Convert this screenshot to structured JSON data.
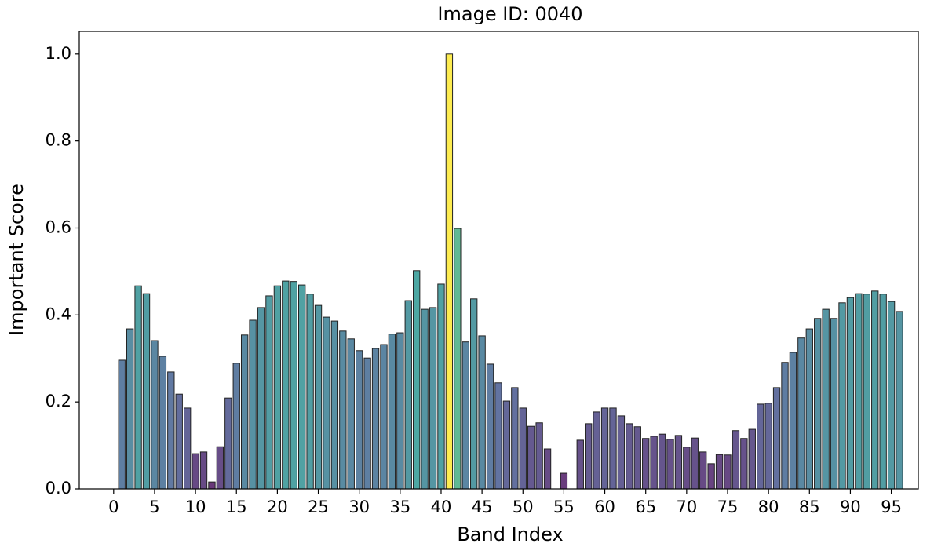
{
  "chart_data": {
    "type": "bar",
    "title": "Image ID: 0040",
    "xlabel": "Band Index",
    "ylabel": "Important Score",
    "x": [
      1,
      2,
      3,
      4,
      5,
      6,
      7,
      8,
      9,
      10,
      11,
      12,
      13,
      14,
      15,
      16,
      17,
      18,
      19,
      20,
      21,
      22,
      23,
      24,
      25,
      26,
      27,
      28,
      29,
      30,
      31,
      32,
      33,
      34,
      35,
      36,
      37,
      38,
      39,
      40,
      41,
      42,
      43,
      44,
      45,
      46,
      47,
      48,
      49,
      50,
      51,
      52,
      53,
      54,
      55,
      56,
      57,
      58,
      59,
      60,
      61,
      62,
      63,
      64,
      65,
      66,
      67,
      68,
      69,
      70,
      71,
      72,
      73,
      74,
      75,
      76,
      77,
      78,
      79,
      80,
      81,
      82,
      83,
      84,
      85,
      86,
      87,
      88,
      89,
      90,
      91,
      92,
      93,
      94,
      95,
      96
    ],
    "values": [
      0.296,
      0.368,
      0.467,
      0.449,
      0.341,
      0.305,
      0.269,
      0.218,
      0.186,
      0.081,
      0.085,
      0.016,
      0.097,
      0.209,
      0.289,
      0.354,
      0.388,
      0.417,
      0.444,
      0.467,
      0.478,
      0.477,
      0.469,
      0.448,
      0.422,
      0.395,
      0.386,
      0.363,
      0.345,
      0.318,
      0.301,
      0.323,
      0.332,
      0.356,
      0.359,
      0.433,
      0.502,
      0.413,
      0.417,
      0.471,
      1.0,
      0.599,
      0.338,
      0.437,
      0.352,
      0.287,
      0.244,
      0.202,
      0.233,
      0.186,
      0.144,
      0.152,
      0.092,
      0,
      0.036,
      0,
      0.112,
      0.15,
      0.177,
      0.186,
      0.186,
      0.168,
      0.15,
      0.143,
      0.116,
      0.121,
      0.126,
      0.114,
      0.123,
      0.096,
      0.117,
      0.085,
      0.058,
      0.079,
      0.078,
      0.134,
      0.116,
      0.137,
      0.195,
      0.197,
      0.233,
      0.291,
      0.314,
      0.347,
      0.368,
      0.392,
      0.413,
      0.392,
      0.428,
      0.44,
      0.449,
      0.448,
      0.455,
      0.448,
      0.431,
      0.408
    ],
    "colormap": "viridis",
    "edgecolor": "#222222",
    "xlim": [
      -4.2,
      98.3
    ],
    "xticks": [
      0,
      5,
      10,
      15,
      20,
      25,
      30,
      35,
      40,
      45,
      50,
      55,
      60,
      65,
      70,
      75,
      80,
      85,
      90,
      95
    ],
    "ylim": [
      0,
      1.052
    ],
    "yticks": [
      {
        "value": 0,
        "label": "0.0"
      },
      {
        "value": 0.2,
        "label": "0.2"
      },
      0.4,
      0.6,
      0.8,
      {
        "value": 1.0,
        "label": "1.0"
      }
    ]
  }
}
